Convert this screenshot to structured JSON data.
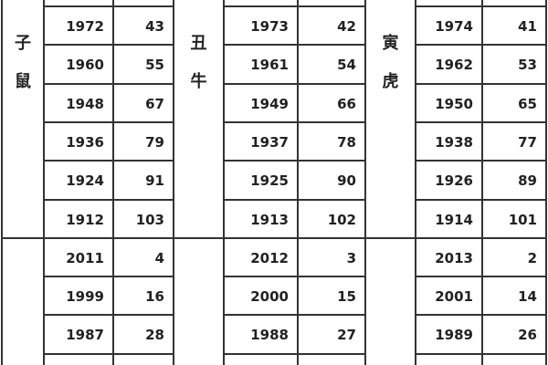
{
  "groups": [
    {
      "label": [
        "子",
        "鼠"
      ],
      "rows": [
        [
          "1972",
          "43"
        ],
        [
          "1960",
          "55"
        ],
        [
          "1948",
          "67"
        ],
        [
          "1936",
          "79"
        ],
        [
          "1924",
          "91"
        ],
        [
          "1912",
          "103"
        ]
      ]
    },
    {
      "label": [
        "丑",
        "牛"
      ],
      "rows": [
        [
          "1973",
          "42"
        ],
        [
          "1961",
          "54"
        ],
        [
          "1949",
          "66"
        ],
        [
          "1937",
          "78"
        ],
        [
          "1925",
          "90"
        ],
        [
          "1913",
          "102"
        ]
      ]
    },
    {
      "label": [
        "寅",
        "虎"
      ],
      "rows": [
        [
          "1974",
          "41"
        ],
        [
          "1962",
          "53"
        ],
        [
          "1950",
          "65"
        ],
        [
          "1938",
          "77"
        ],
        [
          "1926",
          "89"
        ],
        [
          "1914",
          "101"
        ]
      ]
    }
  ],
  "lower_groups": [
    {
      "rows": [
        [
          "2011",
          "4"
        ],
        [
          "1999",
          "16"
        ],
        [
          "1987",
          "28"
        ]
      ]
    },
    {
      "rows": [
        [
          "2012",
          "3"
        ],
        [
          "2000",
          "15"
        ],
        [
          "1988",
          "27"
        ]
      ]
    },
    {
      "rows": [
        [
          "2013",
          "2"
        ],
        [
          "2001",
          "14"
        ],
        [
          "1989",
          "26"
        ]
      ]
    }
  ]
}
